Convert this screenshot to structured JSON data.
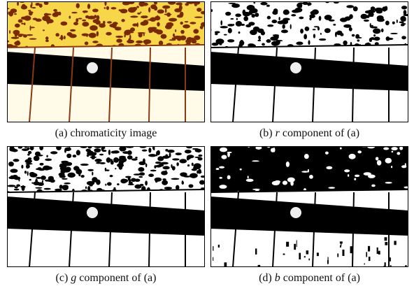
{
  "figure": {
    "panels": [
      {
        "label": "(a)",
        "text": "chromaticity image"
      },
      {
        "label": "(b)",
        "symbol": "r",
        "text": "component of (a)"
      },
      {
        "label": "(c)",
        "symbol": "g",
        "text": "component of (a)"
      },
      {
        "label": "(d)",
        "symbol": "b",
        "text": "component of (a)"
      }
    ]
  }
}
